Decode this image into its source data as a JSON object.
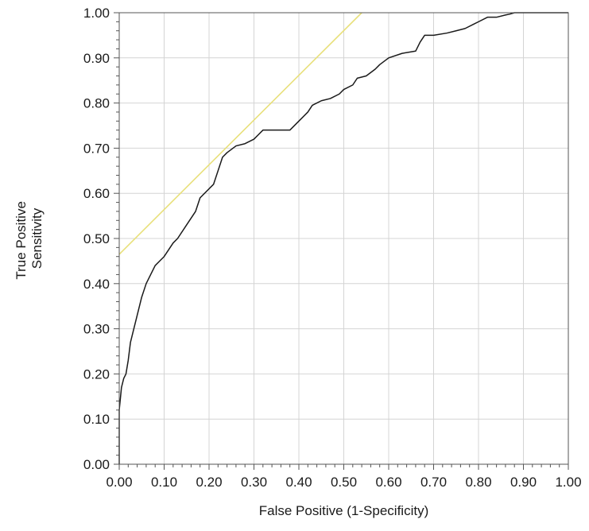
{
  "chart_data": {
    "type": "line",
    "title": "",
    "xlabel": "False Positive  (1-Specificity)",
    "ylabel_lines": [
      "True Positive",
      "Sensitivity"
    ],
    "xlim": [
      0,
      1
    ],
    "ylim": [
      0,
      1
    ],
    "grid": true,
    "x_ticks": [
      "0.00",
      "0.10",
      "0.20",
      "0.30",
      "0.40",
      "0.50",
      "0.60",
      "0.70",
      "0.80",
      "0.90",
      "1.00"
    ],
    "y_ticks": [
      "0.00",
      "0.10",
      "0.20",
      "0.30",
      "0.40",
      "0.50",
      "0.60",
      "0.70",
      "0.80",
      "0.90",
      "1.00"
    ],
    "colors": {
      "roc": "#1a1a1a",
      "reference": "#e8e07a",
      "grid": "#d4d4d4",
      "axis": "#555555"
    },
    "series": [
      {
        "kind": "roc-curve",
        "x": [
          0.0,
          0.0,
          0.005,
          0.01,
          0.015,
          0.02,
          0.025,
          0.03,
          0.04,
          0.05,
          0.06,
          0.07,
          0.08,
          0.09,
          0.1,
          0.12,
          0.13,
          0.15,
          0.17,
          0.18,
          0.2,
          0.21,
          0.22,
          0.23,
          0.24,
          0.26,
          0.28,
          0.3,
          0.31,
          0.32,
          0.34,
          0.36,
          0.38,
          0.4,
          0.42,
          0.43,
          0.45,
          0.47,
          0.49,
          0.5,
          0.52,
          0.53,
          0.55,
          0.57,
          0.58,
          0.6,
          0.63,
          0.66,
          0.67,
          0.68,
          0.7,
          0.73,
          0.75,
          0.77,
          0.79,
          0.8,
          0.82,
          0.84,
          0.86,
          0.87,
          0.88,
          0.9,
          1.0
        ],
        "y": [
          0.0,
          0.12,
          0.17,
          0.19,
          0.2,
          0.23,
          0.27,
          0.29,
          0.33,
          0.37,
          0.4,
          0.42,
          0.44,
          0.45,
          0.46,
          0.49,
          0.5,
          0.53,
          0.56,
          0.59,
          0.61,
          0.62,
          0.65,
          0.68,
          0.69,
          0.705,
          0.71,
          0.72,
          0.73,
          0.74,
          0.74,
          0.74,
          0.74,
          0.76,
          0.78,
          0.795,
          0.805,
          0.81,
          0.82,
          0.83,
          0.84,
          0.855,
          0.86,
          0.875,
          0.885,
          0.9,
          0.91,
          0.915,
          0.935,
          0.95,
          0.95,
          0.955,
          0.96,
          0.965,
          0.975,
          0.98,
          0.99,
          0.99,
          0.995,
          0.997,
          1.0,
          1.0,
          1.0
        ]
      },
      {
        "kind": "reference-line",
        "x": [
          0.0,
          0.54
        ],
        "y": [
          0.465,
          1.0
        ]
      }
    ]
  }
}
